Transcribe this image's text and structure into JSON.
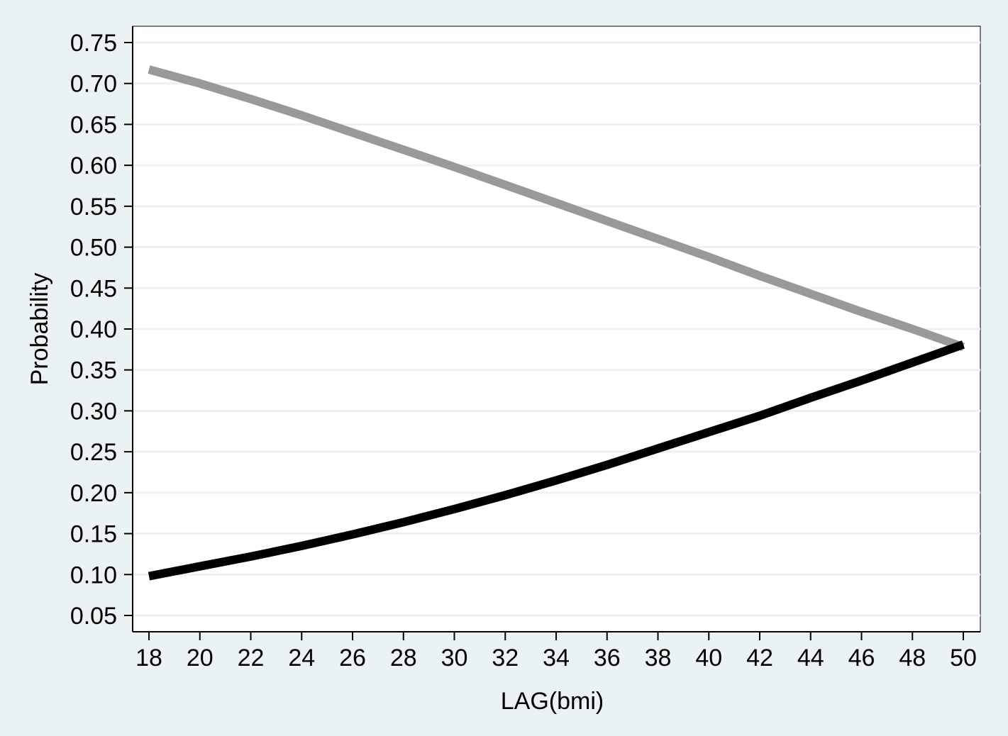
{
  "colors": {
    "page_background": "#eaf2f3",
    "plot_background": "#ffffff",
    "gridline": "#eaf2f3",
    "axis": "#000000"
  },
  "chart_data": {
    "type": "line",
    "title": "",
    "xlabel": "LAG(bmi)",
    "ylabel": "Probability",
    "xlim": [
      18,
      50
    ],
    "ylim": [
      0.05,
      0.75
    ],
    "xticks": [
      "18",
      "20",
      "22",
      "24",
      "26",
      "28",
      "30",
      "32",
      "34",
      "36",
      "38",
      "40",
      "42",
      "44",
      "46",
      "48",
      "50"
    ],
    "yticks": [
      "0.05",
      "0.10",
      "0.15",
      "0.20",
      "0.25",
      "0.30",
      "0.35",
      "0.40",
      "0.45",
      "0.50",
      "0.55",
      "0.60",
      "0.65",
      "0.70",
      "0.75"
    ],
    "grid": true,
    "legend": "none",
    "series": [
      {
        "color": "#999999",
        "x": [
          18,
          20,
          22,
          24,
          26,
          28,
          30,
          32,
          34,
          36,
          38,
          40,
          42,
          44,
          46,
          48,
          50
        ],
        "values": [
          0.717,
          0.7,
          0.681,
          0.661,
          0.64,
          0.619,
          0.598,
          0.576,
          0.554,
          0.532,
          0.51,
          0.488,
          0.465,
          0.443,
          0.421,
          0.4,
          0.378
        ]
      },
      {
        "color": "#000000",
        "x": [
          18,
          20,
          22,
          24,
          26,
          28,
          30,
          32,
          34,
          36,
          38,
          40,
          42,
          44,
          46,
          48,
          50
        ],
        "values": [
          0.098,
          0.11,
          0.122,
          0.135,
          0.149,
          0.164,
          0.18,
          0.197,
          0.215,
          0.234,
          0.254,
          0.274,
          0.294,
          0.316,
          0.337,
          0.359,
          0.381
        ]
      }
    ]
  }
}
